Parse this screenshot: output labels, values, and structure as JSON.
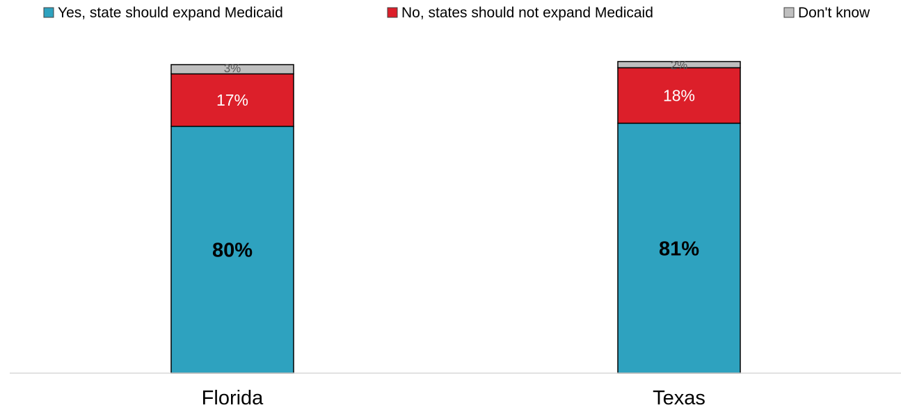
{
  "chart_data": {
    "type": "bar",
    "stacked": true,
    "categories": [
      "Florida",
      "Texas"
    ],
    "series": [
      {
        "name": "Yes, state should expand Medicaid",
        "values": [
          80,
          81
        ],
        "labels": [
          "80%",
          "81%"
        ],
        "color": "#2ea2bf",
        "label_color": "#000000",
        "label_bold": true
      },
      {
        "name": "No, states should not expand Medicaid",
        "values": [
          17,
          18
        ],
        "labels": [
          "17%",
          "18%"
        ],
        "color": "#dc1f2a",
        "label_color": "#ffffff",
        "label_bold": false
      },
      {
        "name": "Don't know",
        "values": [
          3,
          2
        ],
        "labels": [
          "3%",
          "2%"
        ],
        "color": "#bfbfbf",
        "label_color": "#595959",
        "label_bold": false
      }
    ],
    "ylim": [
      0,
      100
    ],
    "grid": false,
    "legend_position": "top",
    "axis_line_color": "#d9d9d9"
  }
}
